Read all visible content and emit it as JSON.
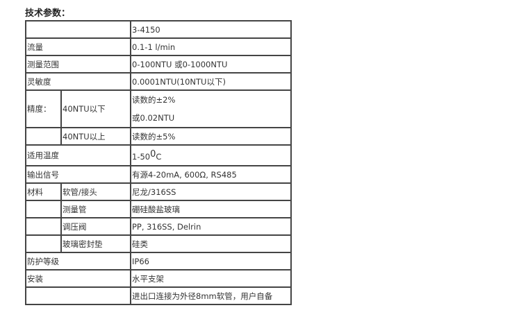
{
  "title": "技术参数：",
  "rows": [
    {
      "label": "",
      "sub": "",
      "value": "3-4150"
    },
    {
      "label": "流量",
      "sub": "",
      "value": "0.1-1 l/min"
    },
    {
      "label": "测量范围",
      "sub": "",
      "value": "0-100NTU 或0-1000NTU"
    },
    {
      "label": "灵敏度",
      "sub": "",
      "value": "0.0001NTU(10NTU以下)"
    },
    {
      "label": "精度：",
      "sub": "40NTU以下",
      "value": "读数的±2%",
      "value2": "或0.02NTU"
    },
    {
      "label": "",
      "sub": "40NTU以上",
      "value": "读数的±5%"
    },
    {
      "label": "适用温度",
      "sub": "",
      "value": "1-50",
      "value_sup": "0",
      "value_unit": "C"
    },
    {
      "label": "输出信号",
      "sub": "",
      "value": "有源4-20mA, 600Ω, RS485"
    },
    {
      "label": "材料",
      "sub": "软管/接头",
      "value": "尼龙/316SS"
    },
    {
      "label": "",
      "sub": "测量管",
      "value": "硼硅酸盐玻璃"
    },
    {
      "label": "",
      "sub": "调压阀",
      "value": "PP, 316SS, Delrin"
    },
    {
      "label": "",
      "sub": "玻璃密封垫",
      "value": "硅类"
    },
    {
      "label": "防护等级",
      "sub": "",
      "value": "IP66"
    },
    {
      "label": "安装",
      "sub": "",
      "value": "水平支架"
    },
    {
      "label": "",
      "sub": "",
      "value": "进出口连接为外径8mm软管，用户自备"
    }
  ]
}
